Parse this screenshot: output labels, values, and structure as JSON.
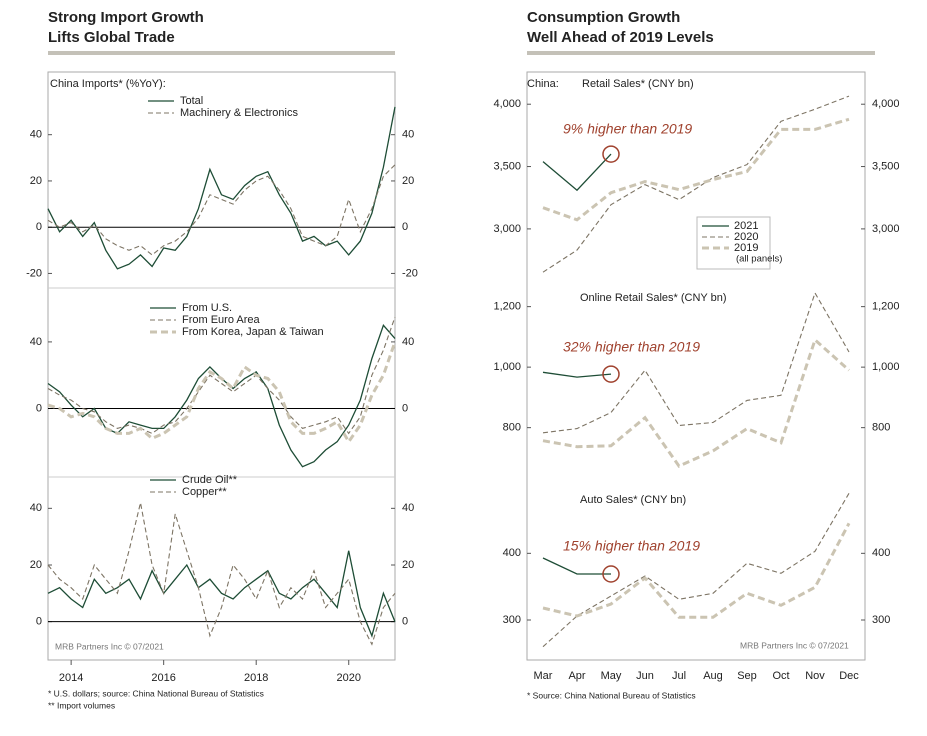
{
  "panels": [
    {
      "title": [
        "Strong Import Growth",
        "Lifts Global Trade"
      ],
      "footnotes": [
        "*  U.S. dollars; source: China National Bureau of Statistics",
        "** Import volumes"
      ]
    },
    {
      "title": [
        "Consumption Growth",
        "Well Ahead of 2019 Levels"
      ],
      "footnotes": [
        "* Source: China National Bureau of Statistics"
      ]
    }
  ],
  "chart_data": [
    {
      "type": "line",
      "subtitle": "China Imports* (%YoY):",
      "x": [
        2013.5,
        2013.75,
        2014,
        2014.25,
        2014.5,
        2014.75,
        2015,
        2015.25,
        2015.5,
        2015.75,
        2016,
        2016.25,
        2016.5,
        2016.75,
        2017,
        2017.25,
        2017.5,
        2017.75,
        2018,
        2018.25,
        2018.5,
        2018.75,
        2019,
        2019.25,
        2019.5,
        2019.75,
        2020,
        2020.25,
        2020.5,
        2020.75,
        2021
      ],
      "xlim": [
        2013.5,
        2021.0
      ],
      "ylim": [
        -25,
        55
      ],
      "yticks": [
        -20,
        0,
        20,
        40
      ],
      "series": [
        {
          "name": "Total",
          "color": "#1e4d36",
          "style": "solid",
          "values": [
            8,
            -2,
            3,
            -4,
            2,
            -10,
            -18,
            -16,
            -12,
            -17,
            -9,
            -10,
            -4,
            8,
            25,
            14,
            12,
            18,
            22,
            24,
            14,
            6,
            -6,
            -4,
            -8,
            -6,
            -12,
            -6,
            6,
            26,
            52
          ]
        },
        {
          "name": "Machinery & Electronics",
          "color": "#7d7464",
          "style": "dashed",
          "values": [
            3,
            0,
            2,
            -2,
            1,
            -5,
            -8,
            -10,
            -8,
            -12,
            -8,
            -6,
            -2,
            4,
            14,
            12,
            10,
            16,
            20,
            22,
            16,
            8,
            -4,
            -6,
            -8,
            -4,
            12,
            -2,
            8,
            22,
            27
          ]
        }
      ]
    },
    {
      "type": "line",
      "x": [
        2013.5,
        2013.75,
        2014,
        2014.25,
        2014.5,
        2014.75,
        2015,
        2015.25,
        2015.5,
        2015.75,
        2016,
        2016.25,
        2016.5,
        2016.75,
        2017,
        2017.25,
        2017.5,
        2017.75,
        2018,
        2018.25,
        2018.5,
        2018.75,
        2019,
        2019.25,
        2019.5,
        2019.75,
        2020,
        2020.25,
        2020.5,
        2020.75,
        2021
      ],
      "xlim": [
        2013.5,
        2021.0
      ],
      "ylim": [
        -40,
        70
      ],
      "yticks": [
        0,
        40
      ],
      "series": [
        {
          "name": "From U.S.",
          "color": "#1e4d36",
          "style": "solid",
          "values": [
            15,
            10,
            2,
            -5,
            0,
            -12,
            -15,
            -8,
            -10,
            -12,
            -12,
            -5,
            5,
            18,
            25,
            18,
            12,
            18,
            22,
            12,
            -10,
            -25,
            -35,
            -32,
            -25,
            -20,
            -10,
            5,
            30,
            50,
            42
          ]
        },
        {
          "name": "From Euro Area",
          "color": "#7d7464",
          "style": "dashed",
          "values": [
            12,
            8,
            5,
            0,
            -2,
            -8,
            -12,
            -10,
            -12,
            -15,
            -10,
            -8,
            0,
            10,
            20,
            15,
            10,
            15,
            20,
            12,
            5,
            -5,
            -12,
            -10,
            -8,
            -5,
            -15,
            -5,
            20,
            35,
            55
          ]
        },
        {
          "name": "From Korea, Japan & Taiwan",
          "color": "#cbc4b2",
          "style": "thick-dashed",
          "values": [
            2,
            0,
            -5,
            -3,
            -5,
            -12,
            -15,
            -15,
            -12,
            -18,
            -15,
            -10,
            -5,
            12,
            22,
            18,
            12,
            25,
            20,
            18,
            10,
            -8,
            -15,
            -15,
            -12,
            -8,
            -20,
            -10,
            8,
            20,
            40
          ]
        }
      ]
    },
    {
      "type": "line",
      "credit": "MRB Partners Inc © 07/2021",
      "x": [
        2013.5,
        2013.75,
        2014,
        2014.25,
        2014.5,
        2014.75,
        2015,
        2015.25,
        2015.5,
        2015.75,
        2016,
        2016.25,
        2016.5,
        2016.75,
        2017,
        2017.25,
        2017.5,
        2017.75,
        2018,
        2018.25,
        2018.5,
        2018.75,
        2019,
        2019.25,
        2019.5,
        2019.75,
        2020,
        2020.25,
        2020.5,
        2020.75,
        2021
      ],
      "xlim": [
        2013.5,
        2021.0
      ],
      "ylim": [
        -10,
        50
      ],
      "yticks": [
        0,
        20,
        40
      ],
      "xticks": [
        2014,
        2016,
        2018,
        2020
      ],
      "series": [
        {
          "name": "Crude Oil**",
          "color": "#1e4d36",
          "style": "solid",
          "values": [
            10,
            12,
            8,
            5,
            15,
            10,
            12,
            15,
            8,
            18,
            10,
            15,
            20,
            12,
            15,
            10,
            8,
            12,
            15,
            18,
            10,
            8,
            12,
            15,
            10,
            5,
            25,
            5,
            -5,
            10,
            0
          ]
        },
        {
          "name": "Copper**",
          "color": "#7d7464",
          "style": "dashed",
          "values": [
            20,
            15,
            12,
            8,
            20,
            15,
            10,
            25,
            42,
            20,
            10,
            38,
            25,
            12,
            -5,
            5,
            20,
            15,
            8,
            18,
            5,
            12,
            8,
            18,
            5,
            10,
            15,
            0,
            -8,
            5,
            10
          ]
        }
      ]
    },
    {
      "type": "line",
      "region": "China:",
      "subtitle": "Retail Sales* (CNY bn)",
      "annotation": "9% higher than 2019",
      "legend_note": "(all panels)",
      "ylim": [
        2550,
        4130
      ],
      "yticks": [
        {
          "value": 3000,
          "label": "3,000"
        },
        {
          "value": 3500,
          "label": "3,500"
        },
        {
          "value": 4000,
          "label": "4,000"
        }
      ],
      "series": [
        {
          "name": "2021",
          "color": "#1e4d36",
          "style": "solid",
          "values": [
            3540,
            3310,
            3600,
            null,
            null,
            null,
            null,
            null,
            null,
            null
          ]
        },
        {
          "name": "2020",
          "color": "#7d7464",
          "style": "dashed",
          "values": [
            2653,
            2830,
            3194,
            3355,
            3234,
            3411,
            3516,
            3863,
            3960,
            4065
          ]
        },
        {
          "name": "2019",
          "color": "#cbc4b2",
          "style": "thick-dashed",
          "values": [
            3170,
            3073,
            3290,
            3379,
            3315,
            3395,
            3460,
            3798,
            3798,
            3879
          ]
        }
      ]
    },
    {
      "type": "line",
      "subtitle": "Online Retail Sales* (CNY bn)",
      "annotation": "32% higher than 2019",
      "ylim": [
        660,
        1255
      ],
      "yticks": [
        800,
        {
          "value": 1000,
          "label": "1,000"
        },
        {
          "value": 1200,
          "label": "1,200"
        }
      ],
      "series": [
        {
          "name": "2021",
          "color": "#1e4d36",
          "style": "solid",
          "values": [
            983,
            967,
            977,
            null,
            null,
            null,
            null,
            null,
            null,
            null
          ]
        },
        {
          "name": "2020",
          "color": "#7d7464",
          "style": "dashed",
          "values": [
            783,
            797,
            850,
            990,
            807,
            817,
            890,
            907,
            1245,
            1050
          ]
        },
        {
          "name": "2019",
          "color": "#cbc4b2",
          "style": "thick-dashed",
          "values": [
            757,
            737,
            740,
            833,
            673,
            723,
            797,
            750,
            1090,
            990
          ]
        }
      ]
    },
    {
      "type": "line",
      "subtitle": "Auto Sales* (CNY bn)",
      "annotation": "15% higher than 2019",
      "credit": "MRB Partners Inc © 07/2021",
      "categories": [
        "Mar",
        "Apr",
        "May",
        "Jun",
        "Jul",
        "Aug",
        "Sep",
        "Oct",
        "Nov",
        "Dec"
      ],
      "ylim": [
        255,
        495
      ],
      "yticks": [
        300,
        400
      ],
      "series": [
        {
          "name": "2021",
          "color": "#1e4d36",
          "style": "solid",
          "values": [
            393,
            369,
            369,
            null,
            null,
            null,
            null,
            null,
            null,
            null
          ]
        },
        {
          "name": "2020",
          "color": "#7d7464",
          "style": "dashed",
          "values": [
            260,
            306,
            336,
            366,
            331,
            340,
            385,
            370,
            403,
            490
          ]
        },
        {
          "name": "2019",
          "color": "#cbc4b2",
          "style": "thick-dashed",
          "values": [
            318,
            306,
            324,
            363,
            304,
            304,
            340,
            322,
            349,
            445
          ]
        }
      ]
    }
  ]
}
